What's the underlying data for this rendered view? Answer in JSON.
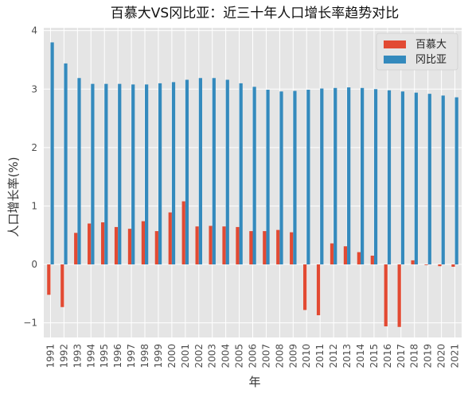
{
  "chart_data": {
    "type": "bar",
    "title": "百慕大VS冈比亚：近三十年人口增长率趋势对比",
    "xlabel": "年",
    "ylabel": "人口增长率(%)",
    "categories": [
      "1991",
      "1992",
      "1993",
      "1994",
      "1995",
      "1996",
      "1997",
      "1998",
      "1999",
      "2000",
      "2001",
      "2002",
      "2003",
      "2004",
      "2005",
      "2006",
      "2007",
      "2008",
      "2009",
      "2010",
      "2011",
      "2012",
      "2013",
      "2014",
      "2015",
      "2016",
      "2017",
      "2018",
      "2019",
      "2020",
      "2021"
    ],
    "series": [
      {
        "name": "百慕大",
        "color": "#E24A33",
        "values": [
          -0.52,
          -0.73,
          0.54,
          0.7,
          0.72,
          0.64,
          0.61,
          0.74,
          0.57,
          0.89,
          1.08,
          0.65,
          0.66,
          0.65,
          0.64,
          0.57,
          0.57,
          0.59,
          0.55,
          -0.78,
          -0.87,
          0.36,
          0.31,
          0.21,
          0.15,
          -1.06,
          -1.07,
          0.07,
          -0.01,
          -0.03,
          -0.04
        ]
      },
      {
        "name": "冈比亚",
        "color": "#348ABD",
        "values": [
          3.8,
          3.44,
          3.19,
          3.09,
          3.09,
          3.09,
          3.08,
          3.08,
          3.1,
          3.12,
          3.16,
          3.19,
          3.19,
          3.16,
          3.1,
          3.04,
          2.99,
          2.96,
          2.97,
          2.99,
          3.01,
          3.02,
          3.03,
          3.02,
          3.0,
          2.98,
          2.96,
          2.94,
          2.92,
          2.89,
          2.86
        ]
      }
    ],
    "ylim": [
      -1.25,
      4.05
    ],
    "yticks": [
      -1,
      0,
      1,
      2,
      3,
      4
    ],
    "ytick_labels": [
      "−1",
      "0",
      "1",
      "2",
      "3",
      "4"
    ],
    "grid": true,
    "legend_position": "top-right",
    "background_color": "#E5E5E5",
    "grid_color": "#FFFFFF"
  }
}
